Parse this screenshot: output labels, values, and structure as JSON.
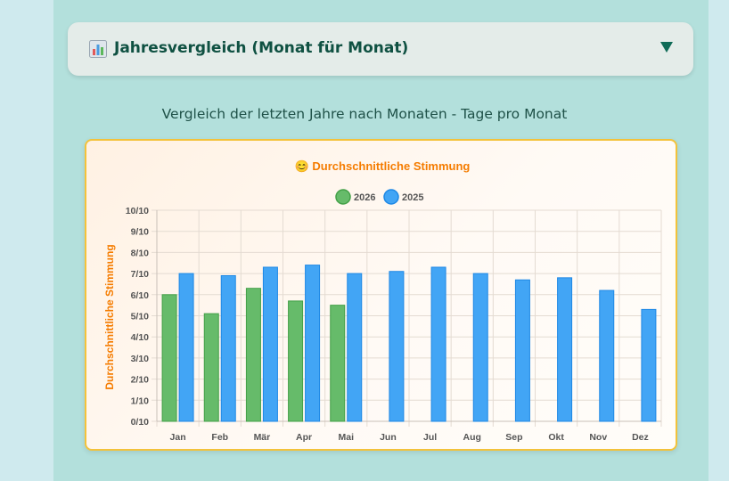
{
  "section": {
    "title": "Jahresvergleich (Monat für Monat)",
    "icon": "bar-chart-icon",
    "toggle_icon": "triangle-down-icon"
  },
  "subtitle": "Vergleich der letzten Jahre nach Monaten - Tage pro Monat",
  "colors": {
    "series_2026": "#66bb6a",
    "series_2025": "#42a5f5",
    "title": "#f57c00",
    "card_border": "#f3c23a"
  },
  "chart_data": {
    "type": "bar",
    "title": "😊 Durchschnittliche Stimmung",
    "ylabel": "Durchschnittliche Stimmung",
    "xlabel": "",
    "categories": [
      "Jan",
      "Feb",
      "Mär",
      "Apr",
      "Mai",
      "Jun",
      "Jul",
      "Aug",
      "Sep",
      "Okt",
      "Nov",
      "Dez"
    ],
    "y_ticks": [
      "0/10",
      "1/10",
      "2/10",
      "3/10",
      "4/10",
      "5/10",
      "6/10",
      "7/10",
      "8/10",
      "9/10",
      "10/10"
    ],
    "ylim": [
      0,
      10
    ],
    "legend_position": "top-center",
    "grid": true,
    "series": [
      {
        "name": "2026",
        "values": [
          6.0,
          5.1,
          6.3,
          5.7,
          5.5,
          null,
          null,
          null,
          null,
          null,
          null,
          null
        ]
      },
      {
        "name": "2025",
        "values": [
          7.0,
          6.9,
          7.3,
          7.4,
          7.0,
          7.1,
          7.3,
          7.0,
          6.7,
          6.8,
          6.2,
          5.3
        ]
      }
    ]
  }
}
